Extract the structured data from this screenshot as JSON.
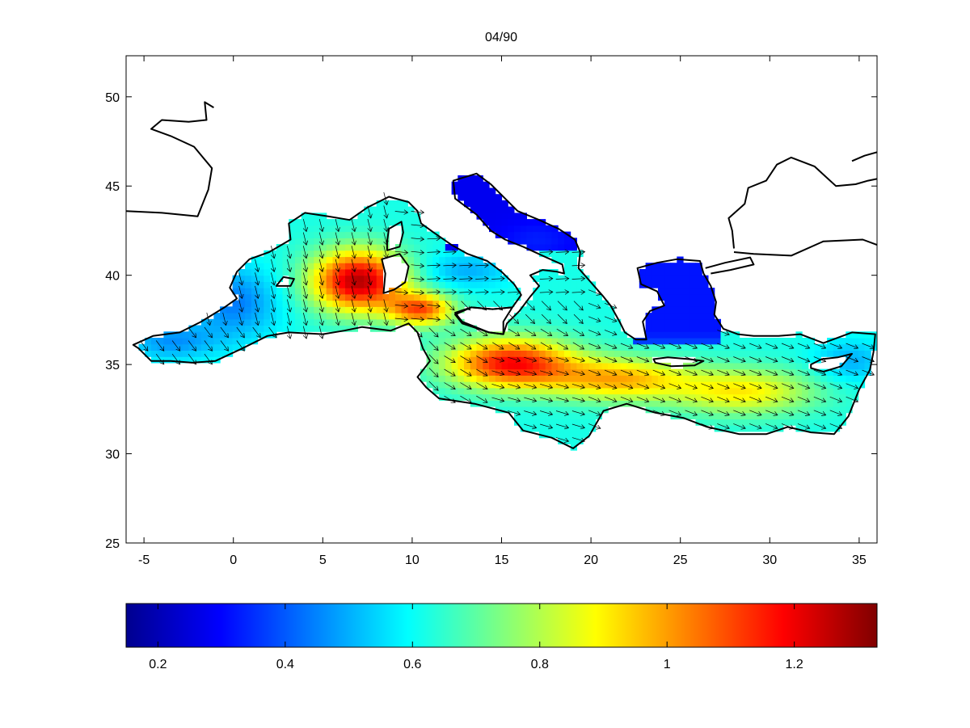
{
  "title": "04/90",
  "map": {
    "lon_range": [
      -6,
      36
    ],
    "lat_range": [
      25,
      52.3
    ],
    "x_ticks": [
      "-5",
      "0",
      "5",
      "10",
      "15",
      "20",
      "25",
      "30",
      "35"
    ],
    "y_ticks": [
      "25",
      "30",
      "35",
      "40",
      "45",
      "50"
    ],
    "field": "shaded magnitude with direction arrows over the Mediterranean Sea",
    "high_regions": [
      "Gulf of Lion to Sardinia-Tunisia",
      "Ionian Sea south of Sicily",
      "Levantine basin south of Crete"
    ],
    "low_regions": [
      "Adriatic Sea",
      "Aegean Sea"
    ]
  },
  "colorbar": {
    "range": [
      0.15,
      1.33
    ],
    "ticks": [
      "0.2",
      "0.4",
      "0.6",
      "0.8",
      "1",
      "1.2"
    ],
    "colormap": "jet"
  },
  "colors": {
    "coast": "#000000",
    "background": "#ffffff"
  }
}
